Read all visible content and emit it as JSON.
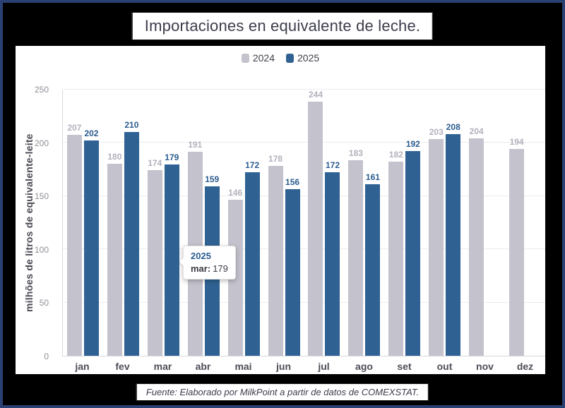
{
  "title": "Importaciones en equivalente de leche.",
  "source": "Fuente: Elaborado por MilkPoint a partir de datos de COMEXSTAT.",
  "legend": [
    {
      "label": "2024",
      "color": "#c4c3cd"
    },
    {
      "label": "2025",
      "color": "#2f6293"
    }
  ],
  "tooltip": {
    "series": "2025",
    "label": "mar:",
    "value": "179"
  },
  "chart_data": {
    "type": "bar",
    "categories": [
      "jan",
      "fev",
      "mar",
      "abr",
      "mai",
      "jun",
      "jul",
      "ago",
      "set",
      "out",
      "nov",
      "dez"
    ],
    "series": [
      {
        "name": "2024",
        "color": "#c4c3cd",
        "label_color": "#b2b1bc",
        "values": [
          207,
          180,
          174,
          191,
          146,
          178,
          244,
          183,
          182,
          203,
          204,
          194
        ]
      },
      {
        "name": "2025",
        "color": "#2f6293",
        "label_color": "#2b5c8e",
        "values": [
          202,
          210,
          179,
          159,
          172,
          156,
          172,
          161,
          192,
          208,
          null,
          null
        ]
      }
    ],
    "title": "Importaciones en equivalente de leche.",
    "xlabel": "",
    "ylabel": "milhões de litros de equivalente-leite",
    "y_ticks": [
      0,
      50,
      100,
      150,
      200,
      250
    ],
    "ylim": [
      0,
      250
    ],
    "grid": true,
    "legend_position": "top",
    "bar_value_labels": true
  }
}
